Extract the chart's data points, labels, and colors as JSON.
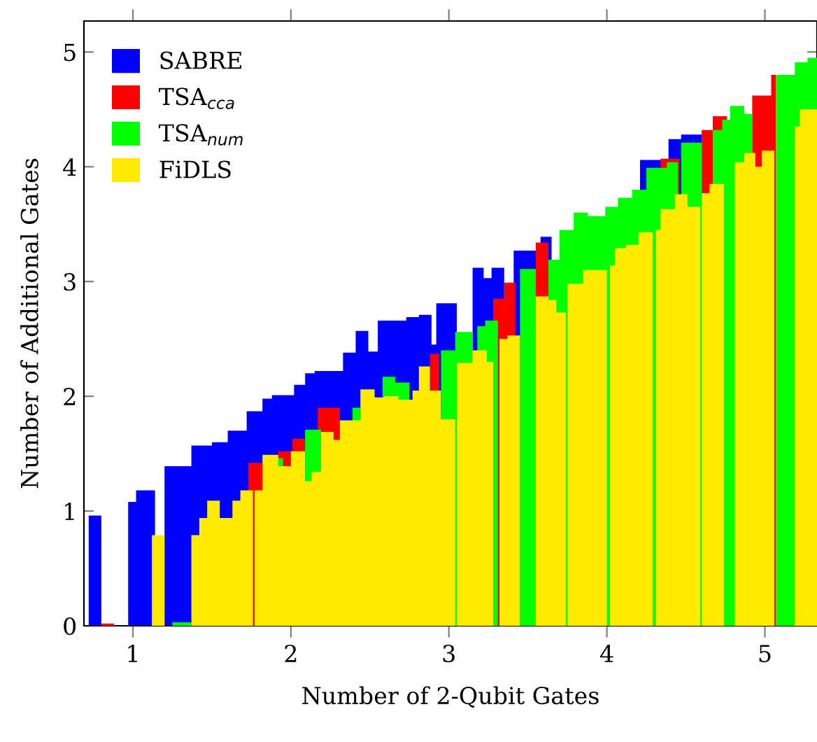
{
  "chart_data": {
    "type": "area",
    "xlabel": "Number of 2-Qubit Gates",
    "ylabel": "Number of Additional Gates",
    "xlim": [
      0.69,
      5.33
    ],
    "ylim": [
      0,
      5.27
    ],
    "xticks": [
      1,
      2,
      3,
      4,
      5
    ],
    "yticks": [
      0,
      1,
      2,
      3,
      4,
      5
    ],
    "grid": false,
    "legend": "top left",
    "series": [
      {
        "name": "SABRE",
        "color": "#0000ff",
        "x": [
          0.72,
          0.8,
          0.97,
          1.02,
          1.14,
          1.2,
          1.37,
          1.5,
          1.6,
          1.72,
          1.82,
          1.88,
          2.02,
          2.09,
          2.15,
          2.33,
          2.41,
          2.49,
          2.55,
          2.73,
          2.81,
          2.89,
          2.92,
          3.05,
          3.15,
          3.22,
          3.27,
          3.35,
          3.41,
          3.58,
          3.65,
          3.79,
          3.92,
          4.03,
          4.21,
          4.39,
          4.47,
          4.6
        ],
        "values": [
          0.96,
          null,
          1.08,
          1.18,
          null,
          1.39,
          1.57,
          1.6,
          1.7,
          1.87,
          1.98,
          2.01,
          2.1,
          2.2,
          2.22,
          2.38,
          2.57,
          2.39,
          2.66,
          2.69,
          2.71,
          2.45,
          2.81,
          null,
          3.12,
          3.03,
          3.12,
          null,
          3.27,
          3.39,
          null,
          null,
          null,
          null,
          4.06,
          4.24,
          4.28,
          4.28
        ]
      },
      {
        "name": "TSA$_{cca}$",
        "color": "#ff0000",
        "x": [
          0.8,
          0.88,
          1.73,
          1.82,
          1.92,
          2.01,
          2.09,
          2.17,
          2.31,
          2.88,
          2.94,
          3.12,
          3.16,
          3.28,
          3.35,
          3.42,
          3.55,
          3.63,
          4.07,
          4.17,
          4.21,
          4.34,
          4.46,
          4.6,
          4.67,
          4.76,
          4.92,
          5.04,
          5.07
        ],
        "values": [
          0.02,
          null,
          1.42,
          null,
          1.52,
          1.63,
          null,
          1.9,
          null,
          2.37,
          null,
          null,
          null,
          2.85,
          2.99,
          null,
          3.34,
          null,
          null,
          null,
          null,
          4.07,
          null,
          4.32,
          4.44,
          null,
          4.62,
          4.8,
          4.8
        ]
      },
      {
        "name": "TSA$_{num}$",
        "color": "#00ff00",
        "x": [
          1.25,
          1.37,
          1.55,
          1.63,
          1.92,
          1.95,
          2.09,
          2.19,
          2.39,
          2.44,
          2.58,
          2.66,
          2.75,
          2.95,
          3.04,
          3.15,
          3.18,
          3.23,
          3.31,
          3.45,
          3.55,
          3.63,
          3.7,
          3.79,
          3.88,
          3.99,
          4.07,
          4.16,
          4.25,
          4.38,
          4.45,
          4.47,
          4.6,
          4.67,
          4.73,
          4.78,
          4.87,
          4.92,
          5.07,
          5.19,
          5.27,
          5.33
        ],
        "values": [
          0.03,
          null,
          null,
          null,
          1.46,
          null,
          1.71,
          null,
          1.9,
          null,
          2.17,
          2.12,
          null,
          2.4,
          2.56,
          null,
          2.61,
          2.66,
          null,
          3.11,
          null,
          3.19,
          3.45,
          3.6,
          3.57,
          3.65,
          3.73,
          3.8,
          3.99,
          4.04,
          null,
          4.21,
          null,
          4.32,
          4.41,
          4.53,
          4.46,
          null,
          4.8,
          4.91,
          4.95,
          4.95
        ]
      },
      {
        "name": "FiDLS",
        "color": "#ffea00",
        "x": [
          1.12,
          1.2,
          1.37,
          1.42,
          1.47,
          1.55,
          1.63,
          1.68,
          1.76,
          1.77,
          1.82,
          1.92,
          2.0,
          2.09,
          2.13,
          2.19,
          2.27,
          2.31,
          2.44,
          2.53,
          2.59,
          2.68,
          2.77,
          2.81,
          2.88,
          2.95,
          3.04,
          3.05,
          3.15,
          3.24,
          3.28,
          3.32,
          3.37,
          3.45,
          3.55,
          3.63,
          3.68,
          3.74,
          3.75,
          3.85,
          4.0,
          4.02,
          4.05,
          4.12,
          4.2,
          4.29,
          4.31,
          4.34,
          4.43,
          4.51,
          4.59,
          4.6,
          4.65,
          4.74,
          4.81,
          4.87,
          4.94,
          4.98,
          5.06,
          5.19,
          5.22,
          5.33
        ],
        "values": [
          0.79,
          null,
          0.79,
          0.94,
          1.09,
          0.94,
          1.09,
          1.18,
          null,
          1.18,
          1.49,
          1.39,
          1.52,
          1.26,
          1.34,
          1.69,
          1.62,
          1.79,
          2.06,
          1.99,
          2.0,
          1.97,
          2.05,
          2.26,
          2.05,
          1.8,
          null,
          2.29,
          2.4,
          2.3,
          null,
          2.5,
          2.53,
          null,
          2.87,
          2.84,
          2.73,
          null,
          2.98,
          3.1,
          null,
          3.14,
          3.29,
          3.32,
          3.43,
          null,
          3.45,
          3.63,
          3.76,
          3.65,
          null,
          3.77,
          3.85,
          null,
          4.04,
          4.12,
          4.0,
          4.14,
          null,
          4.35,
          4.5,
          4.5
        ]
      }
    ]
  }
}
